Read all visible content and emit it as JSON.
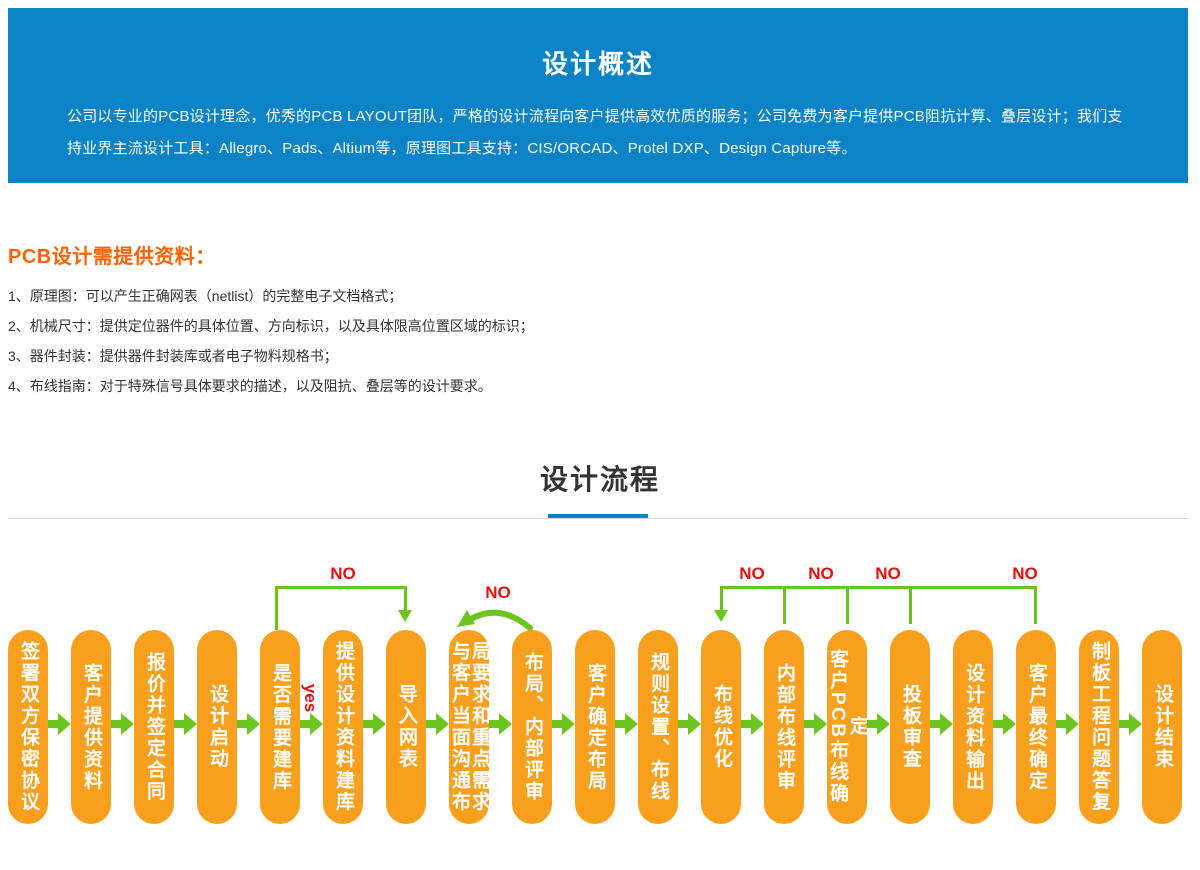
{
  "banner": {
    "title": "设计概述",
    "paragraph": "公司以专业的PCB设计理念，优秀的PCB LAYOUT团队，严格的设计流程向客户提供高效优质的服务；公司免费为客户提供PCB阻抗计算、叠层设计；我们支持业界主流设计工具：Allegro、Pads、Altium等，原理图工具支持：CIS/ORCAD、Protel DXP、Design Capture等。"
  },
  "materials": {
    "heading": "PCB设计需提供资料：",
    "items": [
      "1、原理图：可以产生正确网表（netlist）的完整电子文档格式；",
      "2、机械尺寸：提供定位器件的具体位置、方向标识，以及具体限高位置区域的标识；",
      "3、器件封装：提供器件封装库或者电子物料规格书；",
      "4、布线指南：对于特殊信号具体要求的描述，以及阻抗、叠层等的设计要求。"
    ]
  },
  "process": {
    "title": "设计流程"
  },
  "flowchart": {
    "nodes": [
      "签署双方保密协议",
      "客户提供资料",
      "报价并签定合同",
      "设计启动",
      "是否需要建库",
      "提供设计资料建库",
      "导入网表",
      "与客户当面沟通布局要求和重点需求",
      "布局、内部评审",
      "客户确定布局",
      "规则设置、布线",
      "布线优化",
      "内部布线评审",
      "客户PCB布线确定",
      "投板审查",
      "设计资料输出",
      "客户最终确定",
      "制板工程问题答复",
      "设计结束"
    ],
    "yes_label": "yes",
    "no_label": "NO",
    "colors": {
      "node_orange": "#f8a01e",
      "connector_green": "#6cc51f",
      "decision_red": "#e80e0e",
      "banner_blue": "#0b83c6",
      "heading_orange": "#ff6200"
    }
  }
}
